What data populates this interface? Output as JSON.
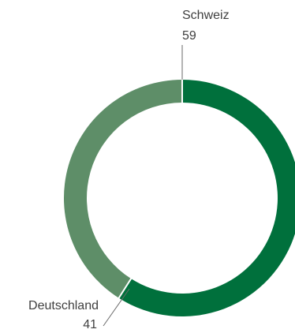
{
  "chart_data": {
    "type": "pie",
    "donut": true,
    "title": "",
    "slices": [
      {
        "label": "Schweiz",
        "value": 59,
        "color": "#00703c"
      },
      {
        "label": "Deutschland",
        "value": 41,
        "color": "#5e8e68"
      }
    ],
    "legend": "none",
    "labels_position": "outside-with-leaders"
  }
}
